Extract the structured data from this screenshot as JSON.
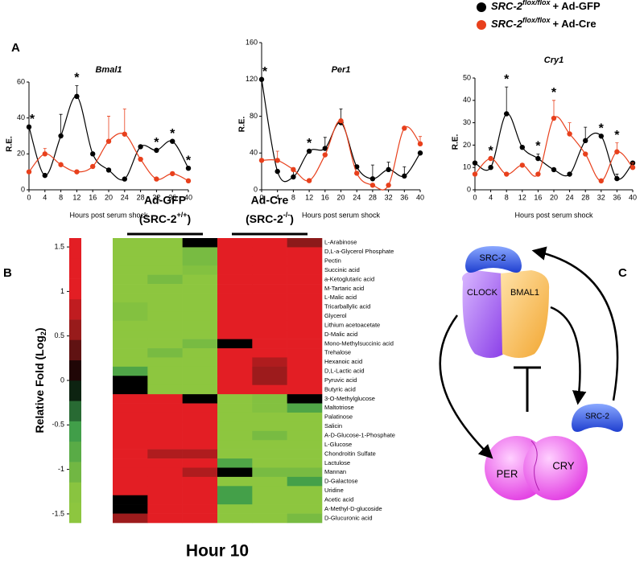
{
  "panels": [
    "A",
    "B",
    "C"
  ],
  "legend": [
    {
      "gene": "SRC-2",
      "sup": "flox/flox",
      "rest": "+ Ad-GFP",
      "color": "#000000"
    },
    {
      "gene": "SRC-2",
      "sup": "flox/flox",
      "rest": "+ Ad-Cre",
      "color": "#e8401c"
    }
  ],
  "chart_data": [
    {
      "type": "line",
      "title": "Bmal1",
      "ylabel": "R.E.",
      "xlabel": "Hours post serum shock",
      "x": [
        0,
        4,
        8,
        12,
        16,
        20,
        24,
        28,
        32,
        36,
        40
      ],
      "xlim": [
        0,
        40
      ],
      "xticks": [
        0,
        4,
        8,
        12,
        16,
        20,
        24,
        28,
        32,
        36,
        40
      ],
      "ylim": [
        0,
        60
      ],
      "yticks": [
        0,
        20,
        40,
        60
      ],
      "series": [
        {
          "color": "#000000",
          "values": [
            35,
            8,
            30,
            52,
            20,
            11,
            6,
            24,
            22,
            27,
            12
          ],
          "errors": [
            0,
            0,
            12,
            6,
            0,
            0,
            0,
            0,
            0,
            0,
            0
          ]
        },
        {
          "color": "#e8401c",
          "values": [
            10,
            20,
            14,
            10,
            13,
            27,
            31,
            17,
            6,
            9,
            5
          ],
          "errors": [
            0,
            3,
            0,
            0,
            0,
            14,
            14,
            0,
            0,
            0,
            0
          ]
        }
      ],
      "annotations": {
        "text": "*",
        "x": [
          0,
          12,
          32,
          36,
          40
        ]
      }
    },
    {
      "type": "line",
      "title": "Per1",
      "ylabel": "R.E.",
      "xlabel": "Hours post serum shock",
      "x": [
        0,
        4,
        8,
        12,
        16,
        20,
        24,
        28,
        32,
        36,
        40
      ],
      "xlim": [
        0,
        40
      ],
      "xticks": [
        0,
        4,
        8,
        12,
        16,
        20,
        24,
        28,
        32,
        36,
        40
      ],
      "ylim": [
        0,
        160
      ],
      "yticks": [
        0,
        40,
        80,
        120,
        160
      ],
      "series": [
        {
          "color": "#000000",
          "values": [
            120,
            20,
            14,
            42,
            45,
            73,
            25,
            12,
            22,
            15,
            40
          ],
          "errors": [
            0,
            0,
            10,
            0,
            12,
            15,
            0,
            15,
            8,
            10,
            0
          ]
        },
        {
          "color": "#e8401c",
          "values": [
            32,
            32,
            22,
            10,
            38,
            75,
            18,
            5,
            5,
            67,
            50
          ],
          "errors": [
            0,
            10,
            0,
            0,
            0,
            0,
            0,
            0,
            0,
            0,
            8
          ]
        }
      ],
      "annotations": {
        "text": "*",
        "x": [
          0,
          12
        ]
      }
    },
    {
      "type": "line",
      "title": "Cry1",
      "ylabel": "R.E.",
      "xlabel": "Hours post serum shock",
      "x": [
        0,
        4,
        8,
        12,
        16,
        20,
        24,
        28,
        32,
        36,
        40
      ],
      "xlim": [
        0,
        40
      ],
      "xticks": [
        0,
        4,
        8,
        12,
        16,
        20,
        24,
        28,
        32,
        36,
        40
      ],
      "ylim": [
        0,
        50
      ],
      "yticks": [
        0,
        10,
        20,
        30,
        40,
        50
      ],
      "series": [
        {
          "color": "#000000",
          "values": [
            12,
            10,
            34,
            19,
            14,
            9,
            7,
            22,
            24,
            5,
            12
          ],
          "errors": [
            0,
            0,
            12,
            0,
            2,
            0,
            0,
            6,
            0,
            2,
            0
          ]
        },
        {
          "color": "#e8401c",
          "values": [
            7,
            14,
            7,
            11,
            7,
            32,
            25,
            16,
            4,
            17,
            10
          ],
          "errors": [
            0,
            0,
            0,
            0,
            0,
            8,
            5,
            0,
            0,
            4,
            2
          ]
        }
      ],
      "annotations": {
        "text": "*",
        "x": [
          4,
          8,
          16,
          20,
          32,
          36
        ]
      }
    }
  ],
  "heatmap": {
    "type": "heatmap",
    "title": "Hour 10",
    "groups": [
      {
        "name": "Ad-GFP",
        "prefix": "(SRC-2",
        "sup": "+/+",
        "suffix": ")"
      },
      {
        "name": "Ad-Cre",
        "prefix": "(SRC-2",
        "sup": "-/-",
        "suffix": ")"
      }
    ],
    "colorbar_label": {
      "text": "Relative  Fold (Log",
      "sub": "2",
      "suffix": ")"
    },
    "clim": [
      -1.6,
      1.6
    ],
    "cticks": [
      1.5,
      1,
      0.5,
      0,
      -0.5,
      -1,
      -1.5
    ],
    "rows": [
      "L-Arabinose",
      "D,L-a-Glycerol Phosphate",
      "Pectin",
      "Succinic acid",
      "a-Ketoglutaric acid",
      "M-Tartaric acid",
      "L-Malic acid",
      "Tricarballylic acid",
      "Glycerol",
      "Lithium acetoacetate",
      "D-Malic acid",
      "Mono-Methylsuccinic acid",
      "Trehalose",
      "Hexanoic acid",
      "D,L-Lactic acid",
      "Pyruvic acid",
      "Butyric acid",
      "3-O-Methylglucose",
      "Maltotriose",
      "Palatinose",
      "Salicin",
      "A-D-Glucose-1-Phosphate",
      "L-Glucose",
      "Chondroitin Sulfate",
      "Lactulose",
      "Mannan",
      "D-Galactose",
      "Uridine",
      "Acetic acid",
      "A-Methyl-D-glucoside",
      "D-Glucuronic acid"
    ],
    "values": [
      [
        -1.3,
        -1.3,
        0,
        1.5,
        1.5,
        0.5
      ],
      [
        -1.3,
        -1.3,
        -1.1,
        1.5,
        1.5,
        1.5
      ],
      [
        -1.3,
        -1.3,
        -1.1,
        1.5,
        1.5,
        1.5
      ],
      [
        -1.3,
        -1.3,
        -1.2,
        1.5,
        1.5,
        1.5
      ],
      [
        -1.3,
        -1.1,
        -1.3,
        1.5,
        1.2,
        1.5
      ],
      [
        -1.3,
        -1.3,
        -1.3,
        1.5,
        1.2,
        1.5
      ],
      [
        -1.3,
        -1.3,
        -1.3,
        1.5,
        1.3,
        1.5
      ],
      [
        -1.2,
        -1.3,
        -1.3,
        1.5,
        1.5,
        1.5
      ],
      [
        -1.2,
        -1.3,
        -1.3,
        1.5,
        1.2,
        1.5
      ],
      [
        -1.3,
        -1.3,
        -1.3,
        1.5,
        1.5,
        1.2
      ],
      [
        -1.3,
        -1.3,
        -1.3,
        1.5,
        1.5,
        1.5
      ],
      [
        -1.3,
        -1.3,
        -1.1,
        0,
        1.5,
        1.5
      ],
      [
        -1.3,
        -1.1,
        -1.3,
        1.5,
        1.5,
        1.5
      ],
      [
        -1.3,
        -1.3,
        -1.3,
        1.5,
        0.7,
        1.5
      ],
      [
        -0.7,
        -1.3,
        -1.3,
        1.2,
        0.6,
        1.5
      ],
      [
        0,
        -1.3,
        -1.3,
        1.5,
        0.6,
        1.5
      ],
      [
        0,
        -1.3,
        -1.3,
        1.5,
        1.2,
        1.5
      ],
      [
        1.5,
        1.5,
        0,
        -1.3,
        -1.2,
        0
      ],
      [
        1.5,
        1.3,
        1.2,
        -1.3,
        -1.2,
        -0.7
      ],
      [
        1.5,
        1.3,
        1.2,
        -1.3,
        -1.3,
        -1.3
      ],
      [
        1.5,
        1.5,
        1.2,
        -1.3,
        -1.3,
        -1.3
      ],
      [
        1.5,
        1.2,
        1.2,
        -1.3,
        -1.1,
        -1.3
      ],
      [
        1.5,
        1.5,
        1.2,
        -1.3,
        -1.3,
        -1.3
      ],
      [
        1.5,
        0.7,
        0.7,
        -1.3,
        -1.3,
        -1.3
      ],
      [
        1.5,
        1.5,
        1.2,
        -0.7,
        -1.3,
        -1.3
      ],
      [
        1.5,
        1.3,
        0.7,
        0,
        -1.1,
        -1.1
      ],
      [
        1.5,
        1.5,
        1.5,
        -1.3,
        -1.3,
        -0.6
      ],
      [
        1.2,
        1.5,
        1.5,
        -0.6,
        -1.3,
        -1.3
      ],
      [
        0,
        1.5,
        1.5,
        -0.6,
        -1.3,
        -1.3
      ],
      [
        0,
        1.5,
        1.5,
        -1.3,
        -1.3,
        -1.3
      ],
      [
        0.6,
        1.5,
        1.5,
        -1.3,
        -1.3,
        -1.1
      ]
    ]
  },
  "diagram": {
    "src2_top": "SRC-2",
    "clock": "CLOCK",
    "bmal1": "BMAL1",
    "per": "PER",
    "cry": "CRY",
    "src2_free": "SRC-2"
  }
}
